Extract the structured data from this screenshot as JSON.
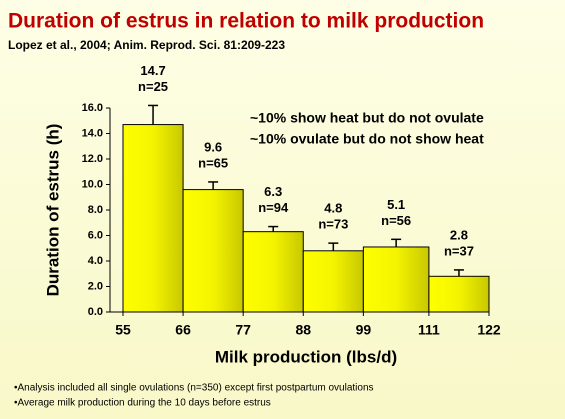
{
  "chart_data": {
    "type": "histogram",
    "title": "Duration of estrus in relation to milk production",
    "subtitle": "Lopez et al., 2004; Anim. Reprod. Sci. 81:209-223",
    "x_label": "Milk production (lbs/d)",
    "y_label": "Duration of estrus (h)",
    "bins": [
      55,
      66,
      77,
      88,
      99,
      111,
      122
    ],
    "values": [
      14.7,
      9.6,
      6.3,
      4.8,
      5.1,
      2.8
    ],
    "errors": [
      1.5,
      0.6,
      0.4,
      0.6,
      0.6,
      0.5
    ],
    "n_labels": [
      "n=25",
      "n=65",
      "n=94",
      "n=73",
      "n=56",
      "n=37"
    ],
    "color": "#ffff00",
    "xlim": [
      55,
      122
    ],
    "xticks": [
      55,
      66,
      77,
      88,
      99,
      111,
      122
    ],
    "ylim": [
      0,
      16
    ],
    "yticks": [
      {
        "value": 0,
        "label": "0.0"
      },
      {
        "value": 2,
        "label": "2.0"
      },
      {
        "value": 4,
        "label": "4.0"
      },
      {
        "value": 6,
        "label": "6.0"
      },
      {
        "value": 8,
        "label": "8.0"
      },
      {
        "value": 10,
        "label": "10.0"
      },
      {
        "value": 12,
        "label": "12.0"
      },
      {
        "value": 14,
        "label": "14.0"
      },
      {
        "value": 16,
        "label": "16.0"
      }
    ],
    "annotations": [
      "~10% show heat but do not ovulate",
      "~10% ovulate but do not show heat"
    ],
    "footnotes": [
      "•Analysis included all single ovulations (n=350) except first postpartum ovulations",
      "•Average milk production during the 10 days before estrus"
    ]
  }
}
